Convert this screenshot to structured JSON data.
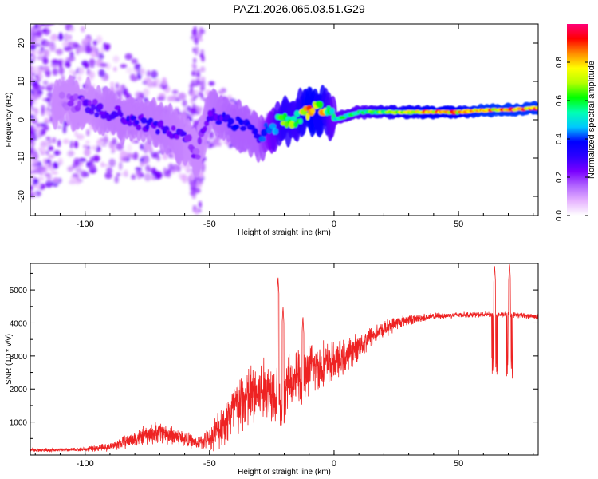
{
  "figure": {
    "title": "PAZ1.2026.065.03.51.G29"
  },
  "chart_data": [
    {
      "type": "heatmap",
      "title": "PAZ1.2026.065.03.51.G29",
      "xlabel": "Height of straight line (km)",
      "ylabel": "Frequency (Hz)",
      "xlim": [
        -122,
        82
      ],
      "ylim": [
        -25,
        25
      ],
      "xticks": [
        -100,
        -50,
        0,
        50
      ],
      "xticklabels": [
        "-100",
        "-50",
        "0",
        "50"
      ],
      "yticks": [
        -20,
        -10,
        0,
        10,
        20
      ],
      "yticklabels": [
        "-20",
        "-10",
        "0",
        "10",
        "20"
      ],
      "colorbar": {
        "label": "Normalized spectral amplitude",
        "range": [
          0.0,
          1.0
        ],
        "ticks": [
          0.0,
          0.2,
          0.4,
          0.6,
          0.8
        ],
        "ticklabels": [
          "0.0",
          "0.2",
          "0.4",
          "0.6",
          "0.8"
        ],
        "colormap": [
          "#ffffff",
          "#e6b3ff",
          "#b266ff",
          "#7a00ff",
          "#2c00ff",
          "#0000ff",
          "#00c8ff",
          "#00ffb4",
          "#00ff00",
          "#b4ff00",
          "#ffff00",
          "#ff8c00",
          "#ff0000",
          "#ff0078"
        ]
      },
      "ridge": {
        "description_points_x": [
          -110,
          -100,
          -90,
          -80,
          -70,
          -60,
          -55,
          -50,
          -40,
          -30,
          -20,
          -15,
          -10,
          -5,
          0,
          5,
          10,
          20,
          30,
          40,
          50,
          60,
          70,
          80
        ],
        "frequency_hz": [
          5,
          4,
          2,
          0,
          -2,
          -5,
          -9,
          2,
          -1,
          -4,
          0,
          0,
          3,
          3,
          0,
          1,
          2,
          2,
          2,
          2,
          2,
          2.5,
          2.5,
          3
        ],
        "peak_amplitude": [
          0.15,
          0.25,
          0.3,
          0.3,
          0.3,
          0.28,
          0.2,
          0.3,
          0.35,
          0.35,
          0.7,
          0.65,
          0.85,
          0.8,
          0.55,
          0.6,
          0.6,
          0.7,
          0.8,
          0.85,
          0.85,
          0.9,
          0.9,
          0.9
        ]
      }
    },
    {
      "type": "line",
      "xlabel": "Height of straight line (km)",
      "ylabel": "SNR (10 * v/v)",
      "xlim": [
        -122,
        82
      ],
      "ylim": [
        0,
        5800
      ],
      "xticks": [
        -100,
        -50,
        0,
        50
      ],
      "xticklabels": [
        "-100",
        "-50",
        "0",
        "50"
      ],
      "yticks": [
        1000,
        2000,
        3000,
        4000,
        5000
      ],
      "yticklabels": [
        "1000",
        "2000",
        "3000",
        "4000",
        "5000"
      ],
      "line_color": "#ee2222",
      "envelope": {
        "x": [
          -122,
          -110,
          -100,
          -90,
          -80,
          -70,
          -60,
          -55,
          -50,
          -45,
          -40,
          -35,
          -30,
          -25,
          -20,
          -15,
          -10,
          -5,
          0,
          5,
          10,
          15,
          20,
          25,
          30,
          35,
          40,
          50,
          60,
          70,
          82
        ],
        "mean": [
          150,
          150,
          170,
          250,
          500,
          700,
          500,
          350,
          500,
          900,
          1400,
          1700,
          1900,
          2000,
          2100,
          2300,
          2600,
          2700,
          2800,
          3000,
          3300,
          3600,
          3800,
          4000,
          4100,
          4150,
          4200,
          4250,
          4250,
          4250,
          4200
        ],
        "spread": [
          60,
          60,
          80,
          150,
          300,
          400,
          300,
          200,
          400,
          800,
          1100,
          1200,
          1200,
          1100,
          1000,
          1000,
          900,
          900,
          700,
          600,
          500,
          400,
          300,
          250,
          200,
          150,
          120,
          100,
          100,
          100,
          100
        ]
      },
      "spikes": [
        {
          "x": -22.5,
          "peak": 5400,
          "min": 1000
        },
        {
          "x": -20.5,
          "peak": 4500,
          "min": 900
        },
        {
          "x": -12.5,
          "peak": 4200,
          "min": 1500
        },
        {
          "x": 64.5,
          "peak": 5750,
          "min": 2300
        },
        {
          "x": 70.5,
          "peak": 5800,
          "min": 2300
        }
      ]
    }
  ]
}
